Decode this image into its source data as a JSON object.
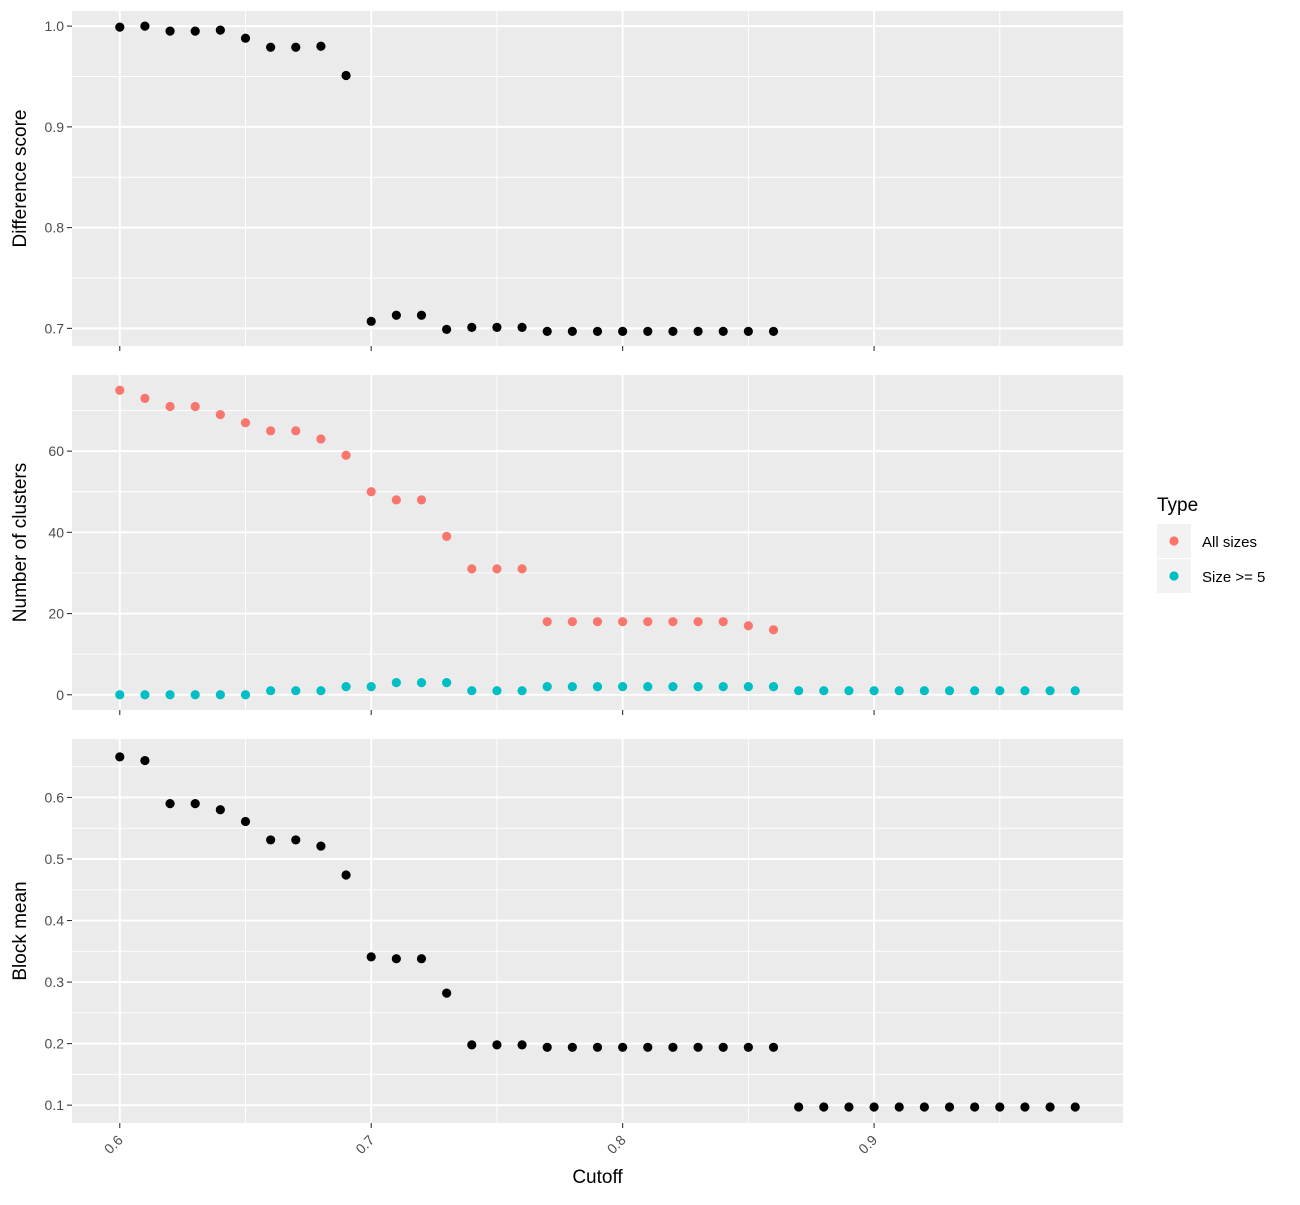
{
  "chart_data": {
    "type": "scatter",
    "xlabel": "Cutoff",
    "xlim": [
      0.581,
      0.999
    ],
    "x_ticks": [
      "0.6",
      "0.7",
      "0.8",
      "0.9"
    ],
    "x_tick_values": [
      0.6,
      0.7,
      0.8,
      0.9
    ],
    "legend": {
      "title": "Type",
      "position": "right",
      "entries": [
        {
          "label": "All sizes",
          "color": "#F8766D"
        },
        {
          "label": "Size >= 5",
          "color": "#00BFC4"
        }
      ]
    },
    "panels": [
      {
        "ylabel": "Difference score",
        "ylim": [
          0.6825,
          1.015
        ],
        "y_ticks": [
          "0.7",
          "0.8",
          "0.9",
          "1.0"
        ],
        "y_tick_values": [
          0.7,
          0.8,
          0.9,
          1.0
        ],
        "series": [
          {
            "color": "#000000",
            "x": [
              0.6,
              0.61,
              0.62,
              0.63,
              0.64,
              0.65,
              0.66,
              0.67,
              0.68,
              0.69,
              0.7,
              0.71,
              0.72,
              0.73,
              0.74,
              0.75,
              0.76,
              0.77,
              0.78,
              0.79,
              0.8,
              0.81,
              0.82,
              0.83,
              0.84,
              0.85,
              0.86
            ],
            "y": [
              0.999,
              1.0,
              0.995,
              0.995,
              0.996,
              0.988,
              0.979,
              0.979,
              0.98,
              0.951,
              0.707,
              0.713,
              0.713,
              0.699,
              0.701,
              0.701,
              0.701,
              0.697,
              0.697,
              0.697,
              0.697,
              0.697,
              0.697,
              0.697,
              0.697,
              0.697,
              0.697
            ]
          }
        ]
      },
      {
        "ylabel": "Number of clusters",
        "ylim": [
          -3.75,
          78.75
        ],
        "y_ticks": [
          "0",
          "20",
          "40",
          "60"
        ],
        "y_tick_values": [
          0,
          20,
          40,
          60
        ],
        "series": [
          {
            "name": "All sizes",
            "color": "#F8766D",
            "x": [
              0.6,
              0.61,
              0.62,
              0.63,
              0.64,
              0.65,
              0.66,
              0.67,
              0.68,
              0.69,
              0.7,
              0.71,
              0.72,
              0.73,
              0.74,
              0.75,
              0.76,
              0.77,
              0.78,
              0.79,
              0.8,
              0.81,
              0.82,
              0.83,
              0.84,
              0.85,
              0.86
            ],
            "y": [
              75,
              73,
              71,
              71,
              69,
              67,
              65,
              65,
              63,
              59,
              50,
              48,
              48,
              39,
              31,
              31,
              31,
              18,
              18,
              18,
              18,
              18,
              18,
              18,
              18,
              17,
              16
            ]
          },
          {
            "name": "Size >= 5",
            "color": "#00BFC4",
            "x": [
              0.6,
              0.61,
              0.62,
              0.63,
              0.64,
              0.65,
              0.66,
              0.67,
              0.68,
              0.69,
              0.7,
              0.71,
              0.72,
              0.73,
              0.74,
              0.75,
              0.76,
              0.77,
              0.78,
              0.79,
              0.8,
              0.81,
              0.82,
              0.83,
              0.84,
              0.85,
              0.86,
              0.87,
              0.88,
              0.89,
              0.9,
              0.91,
              0.92,
              0.93,
              0.94,
              0.95,
              0.96,
              0.97,
              0.98
            ],
            "y": [
              0,
              0,
              0,
              0,
              0,
              0,
              1,
              1,
              1,
              2,
              2,
              3,
              3,
              3,
              1,
              1,
              1,
              2,
              2,
              2,
              2,
              2,
              2,
              2,
              2,
              2,
              2,
              1,
              1,
              1,
              1,
              1,
              1,
              1,
              1,
              1,
              1,
              1,
              1
            ]
          }
        ]
      },
      {
        "ylabel": "Block mean",
        "ylim": [
          0.071,
          0.695
        ],
        "y_ticks": [
          "0.1",
          "0.2",
          "0.3",
          "0.4",
          "0.5",
          "0.6"
        ],
        "y_tick_values": [
          0.1,
          0.2,
          0.3,
          0.4,
          0.5,
          0.6
        ],
        "series": [
          {
            "color": "#000000",
            "x": [
              0.6,
              0.61,
              0.62,
              0.63,
              0.64,
              0.65,
              0.66,
              0.67,
              0.68,
              0.69,
              0.7,
              0.71,
              0.72,
              0.73,
              0.74,
              0.75,
              0.76,
              0.77,
              0.78,
              0.79,
              0.8,
              0.81,
              0.82,
              0.83,
              0.84,
              0.85,
              0.86,
              0.87,
              0.88,
              0.89,
              0.9,
              0.91,
              0.92,
              0.93,
              0.94,
              0.95,
              0.96,
              0.97,
              0.98
            ],
            "y": [
              0.666,
              0.66,
              0.59,
              0.59,
              0.58,
              0.561,
              0.531,
              0.531,
              0.521,
              0.474,
              0.341,
              0.338,
              0.338,
              0.282,
              0.198,
              0.198,
              0.198,
              0.194,
              0.194,
              0.194,
              0.194,
              0.194,
              0.194,
              0.194,
              0.194,
              0.194,
              0.194,
              0.097,
              0.097,
              0.097,
              0.097,
              0.097,
              0.097,
              0.097,
              0.097,
              0.097,
              0.097,
              0.097,
              0.097
            ]
          }
        ]
      }
    ]
  }
}
